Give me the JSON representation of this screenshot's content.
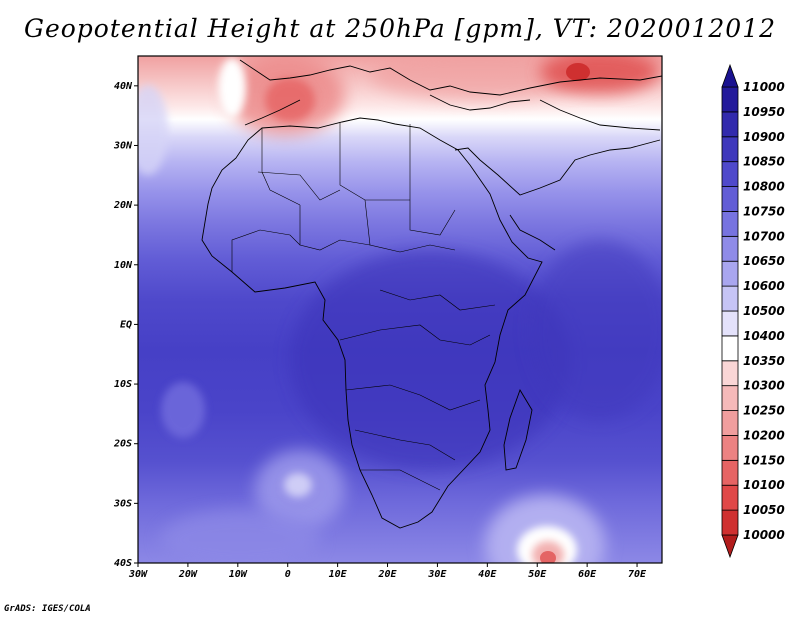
{
  "title": "Geopotential Height at 250hPa [gpm], VT: 2020012012",
  "credit": "GrADS: IGES/COLA",
  "map": {
    "lon_range": [
      -30,
      75
    ],
    "lat_range": [
      -40,
      45
    ],
    "lon_ticks": [
      "30W",
      "20W",
      "10W",
      "0",
      "10E",
      "20E",
      "30E",
      "40E",
      "50E",
      "60E",
      "70E"
    ],
    "lat_ticks": [
      "40S",
      "30S",
      "20S",
      "10S",
      "EQ",
      "10N",
      "20N",
      "30N",
      "40N"
    ]
  },
  "colorbar": {
    "levels": [
      "10000",
      "10050",
      "10100",
      "10150",
      "10200",
      "10250",
      "10300",
      "10350",
      "10400",
      "10500",
      "10600",
      "10650",
      "10700",
      "10750",
      "10800",
      "10850",
      "10900",
      "10950",
      "11000"
    ],
    "colors": [
      "#b21c1c",
      "#cf3030",
      "#e04848",
      "#e66464",
      "#ec8282",
      "#f09e9e",
      "#f5b9b9",
      "#fad6d6",
      "#ffffff",
      "#e4e2fb",
      "#c6c4f5",
      "#a9a6ef",
      "#8f8be8",
      "#7773e0",
      "#625dd6",
      "#4f49cb",
      "#3f38bc",
      "#322aad",
      "#231a9b",
      "#1a1290"
    ]
  }
}
